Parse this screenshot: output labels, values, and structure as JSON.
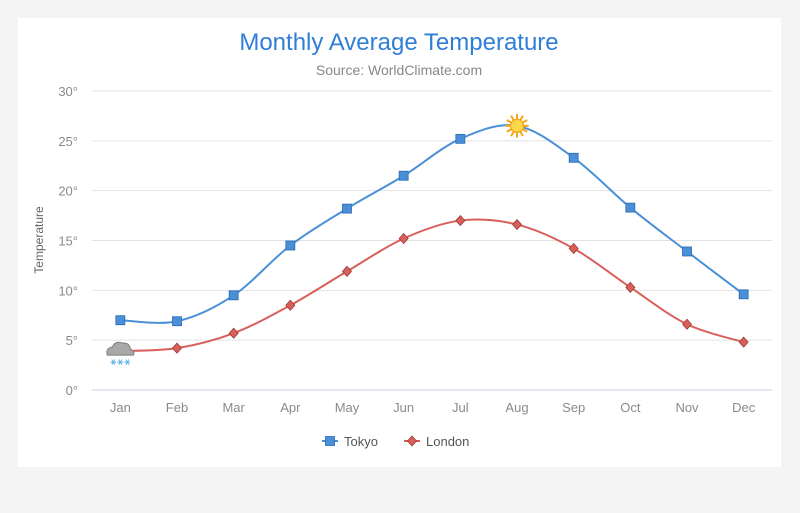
{
  "chart_data": {
    "type": "line",
    "title": "Monthly Average Temperature",
    "subtitle": "Source: WorldClimate.com",
    "ylabel": "Temperature",
    "xlabel": "",
    "y_tick_suffix": "°",
    "ylim": [
      0,
      30
    ],
    "y_ticks": [
      0,
      5,
      10,
      15,
      20,
      25,
      30
    ],
    "categories": [
      "Jan",
      "Feb",
      "Mar",
      "Apr",
      "May",
      "Jun",
      "Jul",
      "Aug",
      "Sep",
      "Oct",
      "Nov",
      "Dec"
    ],
    "grid": true,
    "legend_position": "bottom-center",
    "series": [
      {
        "name": "Tokyo",
        "color": "#4a90d9",
        "marker": "square",
        "values": [
          7.0,
          6.9,
          9.5,
          14.5,
          18.2,
          21.5,
          25.2,
          26.5,
          23.3,
          18.3,
          13.9,
          9.6
        ],
        "special_markers": [
          {
            "index": 7,
            "icon": "sun-icon"
          }
        ]
      },
      {
        "name": "London",
        "color": "#d9605a",
        "marker": "diamond",
        "values": [
          3.9,
          4.2,
          5.7,
          8.5,
          11.9,
          15.2,
          17.0,
          16.6,
          14.2,
          10.3,
          6.6,
          4.8
        ],
        "special_markers": [
          {
            "index": 0,
            "icon": "snow-cloud-icon"
          }
        ]
      }
    ]
  }
}
